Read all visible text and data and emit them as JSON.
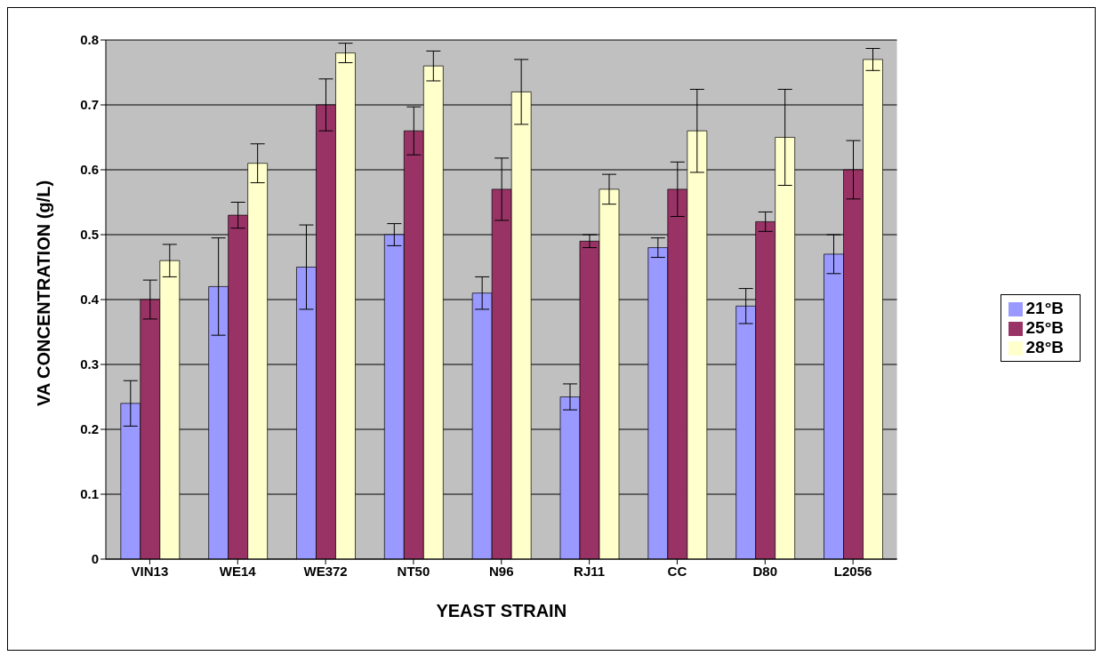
{
  "chart_data": {
    "type": "bar",
    "xlabel": "YEAST STRAIN",
    "ylabel": "VA CONCENTRATION (g/L)",
    "categories": [
      "VIN13",
      "WE14",
      "WE372",
      "NT50",
      "N96",
      "RJ11",
      "CC",
      "D80",
      "L2056"
    ],
    "series": [
      {
        "name": "21°B",
        "color": "#9999ff",
        "values": [
          0.24,
          0.42,
          0.45,
          0.5,
          0.41,
          0.25,
          0.48,
          0.39,
          0.47
        ],
        "errors": [
          0.035,
          0.075,
          0.065,
          0.017,
          0.025,
          0.02,
          0.015,
          0.027,
          0.03
        ]
      },
      {
        "name": "25°B",
        "color": "#993366",
        "values": [
          0.4,
          0.53,
          0.7,
          0.66,
          0.57,
          0.49,
          0.57,
          0.52,
          0.6
        ],
        "errors": [
          0.03,
          0.02,
          0.04,
          0.037,
          0.048,
          0.01,
          0.042,
          0.015,
          0.045
        ]
      },
      {
        "name": "28°B",
        "color": "#ffffcc",
        "values": [
          0.46,
          0.61,
          0.78,
          0.76,
          0.72,
          0.57,
          0.66,
          0.65,
          0.77
        ],
        "errors": [
          0.025,
          0.03,
          0.015,
          0.023,
          0.05,
          0.023,
          0.064,
          0.074,
          0.017
        ]
      }
    ],
    "ylim": [
      0,
      0.8
    ],
    "yticks": [
      0,
      0.1,
      0.2,
      0.3,
      0.4,
      0.5,
      0.6,
      0.7,
      0.8
    ],
    "grid": "y",
    "legend": "right"
  }
}
